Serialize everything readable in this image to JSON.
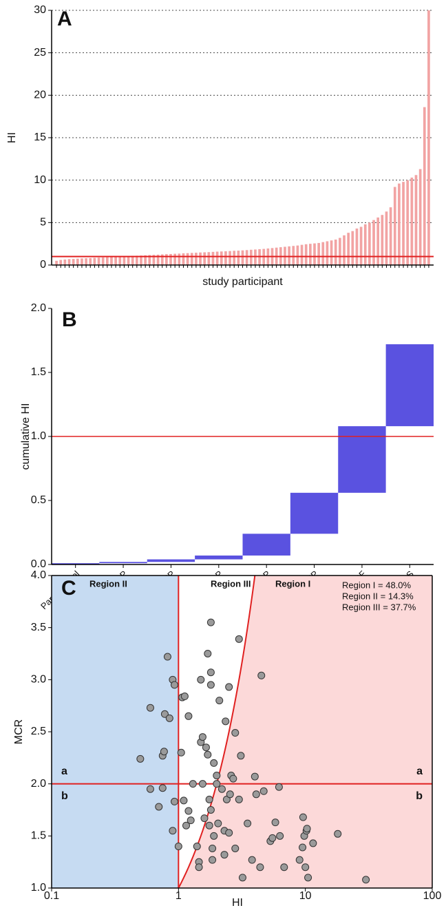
{
  "chart_data": [
    {
      "type": "bar",
      "label": "A",
      "ylabel": "HI",
      "xlabel": "study participant",
      "color": "#f2a3a3",
      "values": [
        0.5,
        0.6,
        0.65,
        0.7,
        0.72,
        0.75,
        0.78,
        0.8,
        0.82,
        0.85,
        0.88,
        0.9,
        0.92,
        0.95,
        0.97,
        1.0,
        1.02,
        1.05,
        1.08,
        1.1,
        1.12,
        1.15,
        1.18,
        1.2,
        1.22,
        1.25,
        1.28,
        1.3,
        1.33,
        1.35,
        1.38,
        1.4,
        1.43,
        1.45,
        1.48,
        1.5,
        1.52,
        1.55,
        1.58,
        1.6,
        1.62,
        1.65,
        1.68,
        1.7,
        1.73,
        1.76,
        1.8,
        1.83,
        1.87,
        1.9,
        1.95,
        2.0,
        2.05,
        2.1,
        2.15,
        2.2,
        2.25,
        2.3,
        2.38,
        2.45,
        2.5,
        2.55,
        2.6,
        2.7,
        2.8,
        2.9,
        3.0,
        3.2,
        3.5,
        3.8,
        4.0,
        4.3,
        4.5,
        4.8,
        5.0,
        5.3,
        5.6,
        5.9,
        6.3,
        6.8,
        9.2,
        9.6,
        9.8,
        10.0,
        10.3,
        10.6,
        11.3,
        18.6,
        30
      ],
      "ylim": [
        0,
        30
      ],
      "yticks": [
        0,
        5,
        10,
        15,
        20,
        25,
        30
      ],
      "grid": true,
      "hline": 1,
      "hline_color": "#e02020"
    },
    {
      "type": "waterfall",
      "label": "B",
      "ylabel": "cumulative HI",
      "color": "#5a52e0",
      "categories": [
        "Paracetamol",
        "DiBP",
        "DiNP",
        "BBzP",
        "DnBP",
        "DEHP",
        "BPF",
        "BPS"
      ],
      "values": [
        0.01,
        0.01,
        0.02,
        0.03,
        0.17,
        0.32,
        0.52,
        0.64
      ],
      "ylim": [
        0,
        2
      ],
      "yticks": [
        {
          "value": 0,
          "label": "0.0"
        },
        0.5,
        {
          "value": 1,
          "label": "1.0"
        },
        1.5,
        {
          "value": 2,
          "label": "2.0"
        }
      ],
      "hline": 1,
      "hline_color": "#e02020"
    },
    {
      "type": "scatter",
      "label": "C",
      "ylabel": "MCR",
      "xlabel": "HI",
      "xscale": "log",
      "color": "#9a9a9a",
      "x": [
        0.5,
        0.6,
        0.6,
        0.7,
        0.75,
        0.75,
        0.77,
        0.78,
        0.82,
        0.85,
        0.9,
        0.9,
        0.93,
        0.93,
        1.0,
        1.05,
        1.07,
        1.12,
        1.1,
        1.15,
        1.2,
        1.2,
        1.25,
        1.3,
        1.4,
        1.45,
        1.45,
        1.5,
        1.5,
        1.55,
        1.55,
        1.6,
        1.65,
        1.7,
        1.7,
        1.75,
        1.75,
        1.8,
        1.8,
        1.8,
        1.8,
        1.85,
        1.85,
        1.9,
        1.9,
        2.0,
        2.0,
        2.05,
        2.1,
        2.2,
        2.3,
        2.3,
        2.35,
        2.4,
        2.5,
        2.5,
        2.55,
        2.6,
        2.7,
        2.8,
        2.8,
        3.0,
        3.0,
        3.1,
        3.2,
        3.5,
        3.8,
        4.0,
        4.1,
        4.4,
        4.5,
        4.7,
        5.3,
        5.5,
        5.8,
        6.2,
        6.3,
        6.8,
        9.0,
        9.5,
        9.6,
        9.8,
        10.0,
        10.2,
        10.3,
        10.5,
        11.5,
        18,
        30
      ],
      "values": [
        2.24,
        2.73,
        1.95,
        1.78,
        1.96,
        2.27,
        2.31,
        2.67,
        3.22,
        2.63,
        3.0,
        1.55,
        2.95,
        1.83,
        1.4,
        2.3,
        2.83,
        2.84,
        1.84,
        1.6,
        2.65,
        1.74,
        1.65,
        2.0,
        1.4,
        1.25,
        1.2,
        2.4,
        3.0,
        2.45,
        2.0,
        1.67,
        2.35,
        3.25,
        2.28,
        1.85,
        1.6,
        3.55,
        3.07,
        2.95,
        1.75,
        1.38,
        1.27,
        2.2,
        1.5,
        2.08,
        2.0,
        1.62,
        2.8,
        1.95,
        1.55,
        1.32,
        2.6,
        1.85,
        2.93,
        1.53,
        1.9,
        2.08,
        2.05,
        2.49,
        1.38,
        3.39,
        1.85,
        2.27,
        1.1,
        1.62,
        1.27,
        2.07,
        1.9,
        1.2,
        3.04,
        1.93,
        1.45,
        1.48,
        1.63,
        1.97,
        1.5,
        1.2,
        1.27,
        1.39,
        1.68,
        1.5,
        1.2,
        1.55,
        1.57,
        1.1,
        1.43,
        1.52,
        1.08
      ],
      "xlim": [
        0.1,
        100
      ],
      "xticks": [
        0.1,
        1,
        10,
        100
      ],
      "ylim": [
        1,
        4
      ],
      "yticks": [
        {
          "value": 1,
          "label": "1.0"
        },
        1.5,
        {
          "value": 2,
          "label": "2.0"
        },
        2.5,
        {
          "value": 3,
          "label": "3.0"
        },
        3.5,
        {
          "value": 4,
          "label": "4.0"
        }
      ],
      "hline": 2,
      "vline": 1,
      "line_color": "#e02020",
      "regions": [
        "Region II",
        "Region III",
        "Region I"
      ],
      "region_colors": [
        "#c6dbf2",
        "#ffffff",
        "#fcd9d9"
      ],
      "stats": [
        "Region I = 48.0%",
        "Region II = 14.3%",
        "Region III = 37.7%"
      ],
      "side_labels": [
        "a",
        "b"
      ]
    }
  ]
}
